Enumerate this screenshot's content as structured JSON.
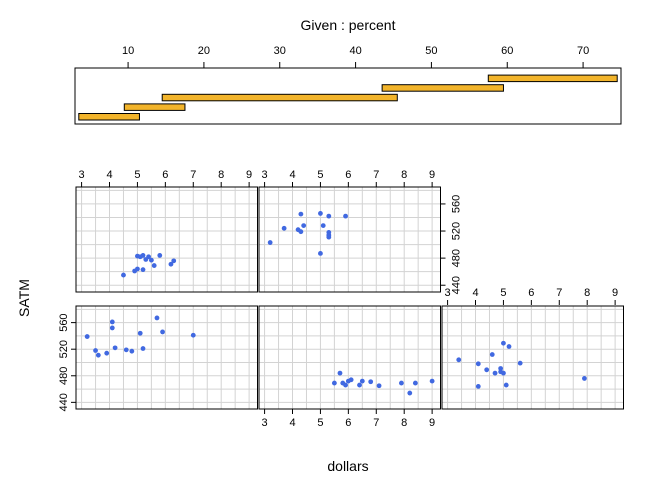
{
  "chart_data": {
    "type": "scatter",
    "subtype": "coplot",
    "given_label": "Given : percent",
    "xlabel": "dollars",
    "ylabel": "SATM",
    "x_ticks": [
      3,
      4,
      5,
      6,
      7,
      8,
      9
    ],
    "y_ticks": [
      440,
      480,
      520,
      560
    ],
    "given_ticks": [
      10,
      20,
      30,
      40,
      50,
      60,
      70
    ],
    "given_range": [
      3,
      75
    ],
    "xlim": [
      2.8,
      9.3
    ],
    "ylim": [
      430,
      585
    ],
    "grid": true,
    "point_color": "#4169e1",
    "bar_color": "#f2b42b",
    "given_intervals": [
      {
        "lo": 3.5,
        "hi": 11.5
      },
      {
        "lo": 9.5,
        "hi": 17.5
      },
      {
        "lo": 14.5,
        "hi": 45.5
      },
      {
        "lo": 43.5,
        "hi": 59.5
      },
      {
        "lo": 57.5,
        "hi": 74.5
      }
    ],
    "panels": [
      {
        "interval": 1,
        "points": [
          [
            3.2,
            539
          ],
          [
            3.5,
            518
          ],
          [
            3.6,
            511
          ],
          [
            3.9,
            514
          ],
          [
            4.1,
            561
          ],
          [
            4.1,
            552
          ],
          [
            4.2,
            522
          ],
          [
            4.6,
            519
          ],
          [
            4.8,
            517
          ],
          [
            5.1,
            544
          ],
          [
            5.2,
            521
          ],
          [
            5.7,
            567
          ],
          [
            5.9,
            546
          ],
          [
            7.0,
            541
          ]
        ]
      },
      {
        "interval": 2,
        "points": [
          [
            4.5,
            455
          ],
          [
            4.9,
            461
          ],
          [
            5.0,
            464
          ],
          [
            5.0,
            483
          ],
          [
            5.1,
            482
          ],
          [
            5.2,
            484
          ],
          [
            5.2,
            463
          ],
          [
            5.3,
            478
          ],
          [
            5.4,
            482
          ],
          [
            5.6,
            469
          ],
          [
            5.5,
            477
          ],
          [
            5.8,
            484
          ],
          [
            6.2,
            471
          ],
          [
            6.3,
            476
          ]
        ]
      },
      {
        "interval": 3,
        "points": [
          [
            3.2,
            503
          ],
          [
            3.7,
            524
          ],
          [
            4.2,
            522
          ],
          [
            4.3,
            545
          ],
          [
            4.3,
            519
          ],
          [
            4.4,
            528
          ],
          [
            5.0,
            546
          ],
          [
            5.0,
            487
          ],
          [
            5.1,
            528
          ],
          [
            5.3,
            542
          ],
          [
            5.3,
            518
          ],
          [
            5.3,
            511
          ],
          [
            5.3,
            514
          ],
          [
            5.9,
            542
          ]
        ]
      },
      {
        "interval": 4,
        "points": [
          [
            5.5,
            469
          ],
          [
            5.7,
            484
          ],
          [
            5.8,
            469
          ],
          [
            5.9,
            466
          ],
          [
            6.0,
            472
          ],
          [
            6.1,
            474
          ],
          [
            6.4,
            466
          ],
          [
            6.5,
            472
          ],
          [
            6.8,
            471
          ],
          [
            7.1,
            465
          ],
          [
            7.9,
            469
          ],
          [
            8.2,
            454
          ],
          [
            8.4,
            469
          ],
          [
            9.0,
            472
          ]
        ]
      },
      {
        "interval": 5,
        "points": [
          [
            3.4,
            504
          ],
          [
            4.1,
            498
          ],
          [
            4.1,
            464
          ],
          [
            4.4,
            489
          ],
          [
            4.6,
            512
          ],
          [
            4.7,
            484
          ],
          [
            4.9,
            486
          ],
          [
            4.9,
            491
          ],
          [
            5.0,
            484
          ],
          [
            5.0,
            529
          ],
          [
            5.1,
            466
          ],
          [
            5.2,
            524
          ],
          [
            5.6,
            499
          ],
          [
            7.9,
            476
          ]
        ]
      }
    ]
  }
}
